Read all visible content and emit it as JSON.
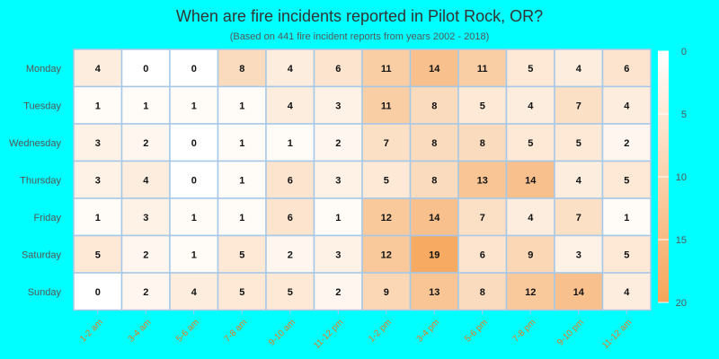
{
  "chart_data": {
    "type": "heatmap",
    "title": "When are fire incidents reported in Pilot Rock, OR?",
    "subtitle": "(Based on 441 fire incident reports from years 2002 - 2018)",
    "x_categories": [
      "1-2 am",
      "3-4 am",
      "5-6 am",
      "7-8 am",
      "9-10 am",
      "11-12 pm",
      "1-2 pm",
      "3-4 pm",
      "5-6 pm",
      "7-8 pm",
      "9-10 pm",
      "11-12 am"
    ],
    "y_categories": [
      "Monday",
      "Tuesday",
      "Wednesday",
      "Thursday",
      "Friday",
      "Saturday",
      "Sunday"
    ],
    "values": [
      [
        4,
        0,
        0,
        8,
        4,
        6,
        11,
        14,
        11,
        5,
        4,
        6
      ],
      [
        1,
        1,
        1,
        1,
        4,
        3,
        11,
        8,
        5,
        4,
        7,
        4
      ],
      [
        3,
        2,
        0,
        1,
        1,
        2,
        7,
        8,
        8,
        5,
        5,
        2
      ],
      [
        3,
        4,
        0,
        1,
        6,
        3,
        5,
        8,
        13,
        14,
        4,
        5
      ],
      [
        1,
        3,
        1,
        1,
        6,
        1,
        12,
        14,
        7,
        4,
        7,
        1
      ],
      [
        5,
        2,
        1,
        5,
        2,
        3,
        12,
        19,
        6,
        9,
        3,
        5
      ],
      [
        0,
        2,
        4,
        5,
        5,
        2,
        9,
        13,
        8,
        12,
        14,
        4
      ]
    ],
    "color_scale": {
      "min": 0,
      "max": 20,
      "min_color": "#FFFFFF",
      "max_color": "#F5A55A",
      "ticks": [
        0,
        5,
        10,
        15,
        20
      ]
    },
    "cell_border_color": "#A6C8E8",
    "legend_placement": "right"
  }
}
